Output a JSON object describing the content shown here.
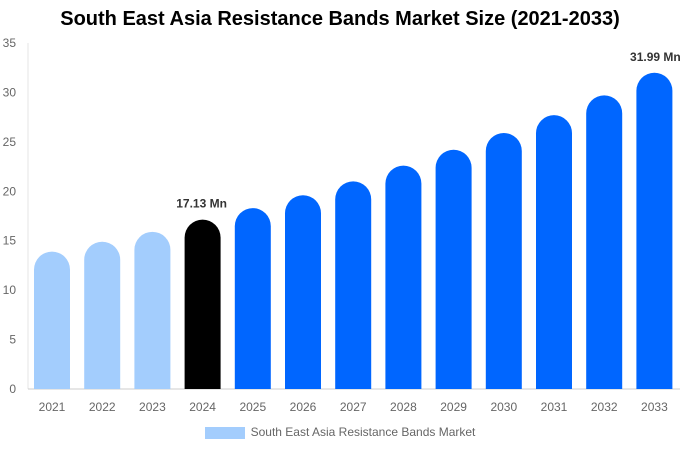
{
  "chart_data": {
    "type": "bar",
    "title": "South East Asia Resistance Bands Market Size (2021-2033)",
    "categories": [
      "2021",
      "2022",
      "2023",
      "2024",
      "2025",
      "2026",
      "2027",
      "2028",
      "2029",
      "2030",
      "2031",
      "2032",
      "2033"
    ],
    "series": [
      {
        "name": "South East Asia Resistance Bands Market",
        "values": [
          13.9,
          14.9,
          15.9,
          17.13,
          18.3,
          19.6,
          21.0,
          22.6,
          24.2,
          25.9,
          27.7,
          29.7,
          31.99
        ]
      }
    ],
    "data_labels": {
      "3": "17.13 Mn",
      "12": "31.99 Mn"
    },
    "ylim": [
      0,
      35
    ],
    "yticks": [
      0,
      5,
      10,
      15,
      20,
      25,
      30,
      35
    ],
    "xlabel": "",
    "ylabel": "",
    "grid": false,
    "legend_position": "bottom",
    "colors": {
      "historical": "#a3cdfd",
      "base_year": "#000000",
      "forecast": "#0066ff"
    }
  }
}
